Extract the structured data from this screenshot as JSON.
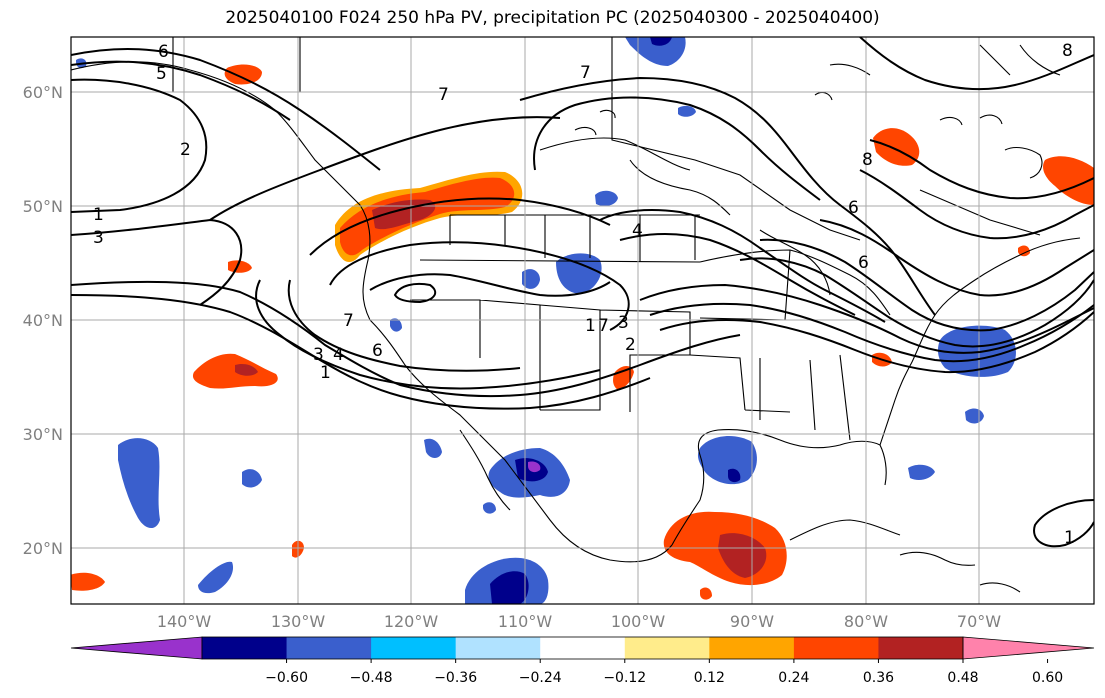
{
  "title": "2025040100 F024 250 hPa PV, precipitation PC (2025040300 - 2025040400)",
  "lat_labels": [
    "60°N",
    "50°N",
    "40°N",
    "30°N",
    "20°N"
  ],
  "lon_labels": [
    "140°W",
    "130°W",
    "120°W",
    "110°W",
    "100°W",
    "90°W",
    "80°W",
    "70°W"
  ],
  "colorbar": {
    "tick_labels": [
      "−0.60",
      "−0.48",
      "−0.36",
      "−0.24",
      "−0.12",
      "0.12",
      "0.24",
      "0.36",
      "0.48",
      "0.60"
    ],
    "colors": [
      "#9932cc",
      "#00008b",
      "#3a5fcd",
      "#00bfff",
      "#b0e2ff",
      "#ffffff",
      "#ffec8b",
      "#ffa500",
      "#ff4500",
      "#b22222",
      "#ff82ab"
    ]
  },
  "pv_contour_labels": [
    "6",
    "5",
    "2",
    "1",
    "3",
    "7",
    "7",
    "4",
    "7",
    "6",
    "3",
    "4",
    "1",
    "6",
    "7",
    "1",
    "2",
    "3",
    "8",
    "8",
    "6",
    "1"
  ],
  "precip_colors": {
    "pos1": "#ffec8b",
    "pos2": "#ffa500",
    "pos3": "#ff4500",
    "pos4": "#b22222",
    "neg1": "#00bfff",
    "neg2": "#3a5fcd",
    "neg3": "#00008b",
    "neg4": "#9932cc"
  }
}
